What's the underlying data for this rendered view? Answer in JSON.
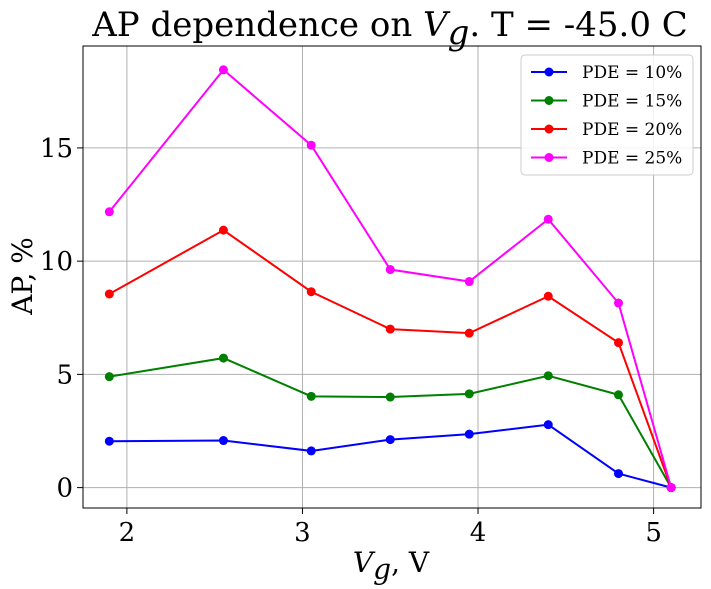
{
  "chart_data": {
    "type": "line",
    "title_prefix": "AP dependence on ",
    "title_var": "V",
    "title_var_sub": "g",
    "title_suffix": ". T = -45.0 C",
    "xlabel_var": "V",
    "xlabel_var_sub": "g",
    "xlabel_suffix": ", V",
    "ylabel": "AP, %",
    "xlim": [
      1.75,
      5.27
    ],
    "ylim": [
      -0.9,
      19.5
    ],
    "xticks": [
      2,
      3,
      4,
      5
    ],
    "yticks": [
      0,
      5,
      10,
      15
    ],
    "grid": true,
    "legend_position": "top-right",
    "x": [
      1.9,
      2.55,
      3.05,
      3.5,
      3.95,
      4.4,
      4.8,
      5.1
    ],
    "series": [
      {
        "name": "PDE = 10%",
        "color": "#0000ff",
        "values": [
          2.05,
          2.08,
          1.62,
          2.12,
          2.36,
          2.78,
          0.62,
          0.0
        ]
      },
      {
        "name": "PDE = 15%",
        "color": "#008000",
        "values": [
          4.9,
          5.72,
          4.03,
          4.0,
          4.14,
          4.94,
          4.1,
          0.0
        ]
      },
      {
        "name": "PDE = 20%",
        "color": "#ff0000",
        "values": [
          8.55,
          11.37,
          8.65,
          7.0,
          6.82,
          8.45,
          6.4,
          0.0
        ]
      },
      {
        "name": "PDE = 25%",
        "color": "#ff00ff",
        "values": [
          12.18,
          18.45,
          15.12,
          9.63,
          9.1,
          11.85,
          8.15,
          0.0
        ]
      }
    ]
  }
}
